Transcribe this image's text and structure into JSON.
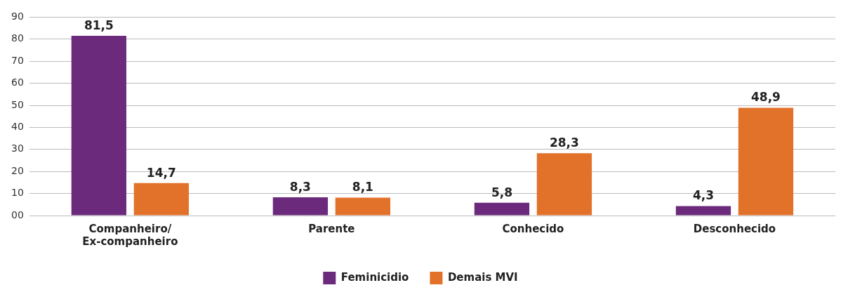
{
  "chart_data": {
    "type": "bar",
    "categories": [
      "Companheiro/\nEx-companheiro",
      "Parente",
      "Conhecido",
      "Desconhecido"
    ],
    "series": [
      {
        "name": "Feminicidio",
        "color": "#6c2a7c",
        "values": [
          81.5,
          8.3,
          5.8,
          4.3
        ],
        "value_labels": [
          "81,5",
          "8,3",
          "5,8",
          "4,3"
        ]
      },
      {
        "name": "Demais MVI",
        "color": "#e2712a",
        "values": [
          14.7,
          8.1,
          28.3,
          48.9
        ],
        "value_labels": [
          "14,7",
          "8,1",
          "28,3",
          "48,9"
        ]
      }
    ],
    "ylim": [
      0,
      90
    ],
    "yticks": [
      {
        "value": 0,
        "label": "00"
      },
      10,
      20,
      30,
      40,
      50,
      60,
      70,
      80,
      90
    ],
    "grid": "y",
    "legend": "bottom"
  }
}
